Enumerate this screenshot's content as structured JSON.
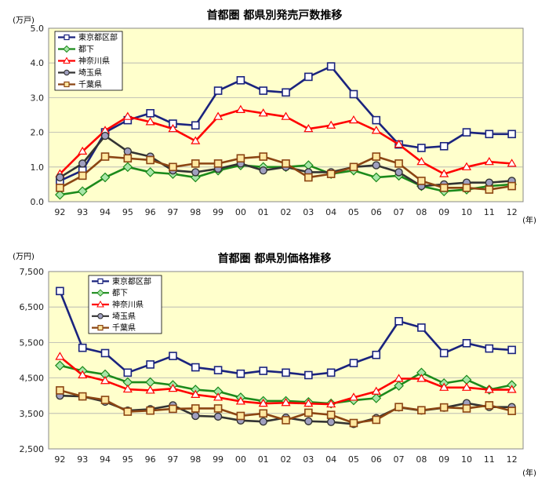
{
  "chart_data": [
    {
      "type": "line",
      "title": "首都圏 都県別発売戸数推移",
      "unit_label": "(万戸)",
      "x_unit_label": "(年)",
      "categories": [
        "92",
        "93",
        "94",
        "95",
        "96",
        "97",
        "98",
        "99",
        "00",
        "01",
        "02",
        "03",
        "04",
        "05",
        "06",
        "07",
        "08",
        "09",
        "10",
        "11",
        "12"
      ],
      "ylim": [
        0,
        5
      ],
      "yticks": [
        "0.0",
        "1.0",
        "2.0",
        "3.0",
        "4.0",
        "5.0"
      ],
      "ytick_values": [
        0,
        1,
        2,
        3,
        4,
        5
      ],
      "grid": true,
      "legend_position": "top-left",
      "series": [
        {
          "name": "東京都区部",
          "color": "#1a237e",
          "marker": "square",
          "values": [
            0.6,
            0.9,
            2.0,
            2.35,
            2.55,
            2.25,
            2.2,
            3.2,
            3.5,
            3.2,
            3.15,
            3.6,
            3.9,
            3.1,
            2.35,
            1.65,
            1.55,
            1.6,
            2.0,
            1.95,
            1.95
          ]
        },
        {
          "name": "都下",
          "color": "#1b8a1b",
          "marker": "diamond",
          "values": [
            0.2,
            0.3,
            0.7,
            1.0,
            0.85,
            0.8,
            0.7,
            0.9,
            1.05,
            1.0,
            1.0,
            1.05,
            0.8,
            0.9,
            0.7,
            0.75,
            0.45,
            0.3,
            0.35,
            0.45,
            0.5
          ]
        },
        {
          "name": "神奈川県",
          "color": "#ff0000",
          "marker": "triangle",
          "values": [
            0.8,
            1.45,
            2.05,
            2.45,
            2.3,
            2.1,
            1.75,
            2.45,
            2.65,
            2.55,
            2.45,
            2.1,
            2.2,
            2.35,
            2.05,
            1.65,
            1.15,
            0.8,
            1.0,
            1.15,
            1.1
          ]
        },
        {
          "name": "埼玉県",
          "color": "#333333",
          "marker": "circle",
          "values": [
            0.7,
            1.1,
            1.9,
            1.45,
            1.3,
            0.9,
            0.85,
            0.95,
            1.1,
            0.9,
            1.0,
            0.85,
            0.85,
            1.0,
            1.05,
            0.85,
            0.45,
            0.5,
            0.55,
            0.55,
            0.6
          ]
        },
        {
          "name": "千葉県",
          "color": "#8b4513",
          "marker": "square-open",
          "values": [
            0.4,
            0.75,
            1.3,
            1.25,
            1.2,
            1.0,
            1.1,
            1.1,
            1.25,
            1.3,
            1.1,
            0.7,
            0.8,
            1.0,
            1.3,
            1.1,
            0.6,
            0.4,
            0.4,
            0.35,
            0.45
          ]
        }
      ]
    },
    {
      "type": "line",
      "title": "首都圏 都県別価格推移",
      "unit_label": "(万円)",
      "x_unit_label": "(年)",
      "categories": [
        "92",
        "93",
        "94",
        "95",
        "96",
        "97",
        "98",
        "99",
        "00",
        "01",
        "02",
        "03",
        "04",
        "05",
        "06",
        "07",
        "08",
        "09",
        "10",
        "11",
        "12"
      ],
      "ylim": [
        2500,
        7500
      ],
      "yticks": [
        "2,500",
        "3,500",
        "4,500",
        "5,500",
        "6,500",
        "7,500"
      ],
      "ytick_values": [
        2500,
        3500,
        4500,
        5500,
        6500,
        7500
      ],
      "grid": true,
      "legend_position": "top-left",
      "series": [
        {
          "name": "東京都区部",
          "color": "#1a237e",
          "marker": "square",
          "values": [
            6950,
            5350,
            5200,
            4650,
            4880,
            5120,
            4800,
            4720,
            4620,
            4700,
            4650,
            4580,
            4650,
            4920,
            5150,
            6100,
            5920,
            5200,
            5480,
            5330,
            5290
          ]
        },
        {
          "name": "都下",
          "color": "#1b8a1b",
          "marker": "diamond",
          "values": [
            4850,
            4700,
            4600,
            4380,
            4380,
            4300,
            4170,
            4120,
            3950,
            3850,
            3850,
            3820,
            3780,
            3870,
            3930,
            4280,
            4650,
            4350,
            4450,
            4170,
            4300
          ]
        },
        {
          "name": "神奈川県",
          "color": "#ff0000",
          "marker": "triangle",
          "values": [
            5100,
            4580,
            4420,
            4180,
            4150,
            4200,
            4030,
            3950,
            3840,
            3780,
            3800,
            3780,
            3760,
            3950,
            4120,
            4480,
            4480,
            4230,
            4230,
            4170,
            4170
          ]
        },
        {
          "name": "埼玉県",
          "color": "#333333",
          "marker": "circle",
          "values": [
            4000,
            3980,
            3830,
            3580,
            3620,
            3730,
            3430,
            3410,
            3300,
            3270,
            3380,
            3280,
            3260,
            3200,
            3370,
            3670,
            3580,
            3660,
            3790,
            3680,
            3680
          ]
        },
        {
          "name": "千葉県",
          "color": "#8b4513",
          "marker": "square-open",
          "values": [
            4150,
            3980,
            3880,
            3550,
            3580,
            3630,
            3640,
            3640,
            3430,
            3500,
            3310,
            3520,
            3460,
            3230,
            3320,
            3680,
            3590,
            3670,
            3640,
            3730,
            3570
          ]
        }
      ]
    }
  ]
}
